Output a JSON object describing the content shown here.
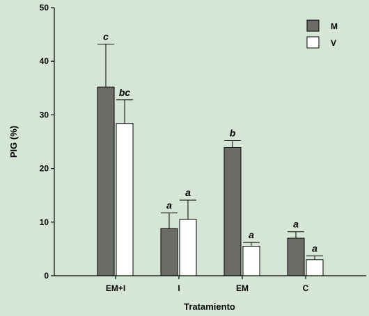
{
  "chart_data": {
    "type": "bar",
    "categories": [
      "EM+I",
      "I",
      "EM",
      "C"
    ],
    "series": [
      {
        "name": "M",
        "color": "#6b6b68",
        "values": [
          35.2,
          8.8,
          23.9,
          7.0
        ],
        "errors": [
          8.0,
          2.9,
          1.3,
          1.2
        ],
        "letters": [
          "c",
          "a",
          "b",
          "a"
        ]
      },
      {
        "name": "V",
        "color": "#ffffff",
        "values": [
          28.4,
          10.5,
          5.5,
          3.0
        ],
        "errors": [
          4.4,
          3.6,
          0.7,
          0.7
        ],
        "letters": [
          "bc",
          "a",
          "a",
          "a"
        ]
      }
    ],
    "xlabel": "Tratamiento",
    "ylabel": "PIG (%)",
    "ylim": [
      0,
      50
    ],
    "yticks": [
      0,
      10,
      20,
      30,
      40,
      50
    ],
    "legend_position": "top-right",
    "grid": false
  }
}
